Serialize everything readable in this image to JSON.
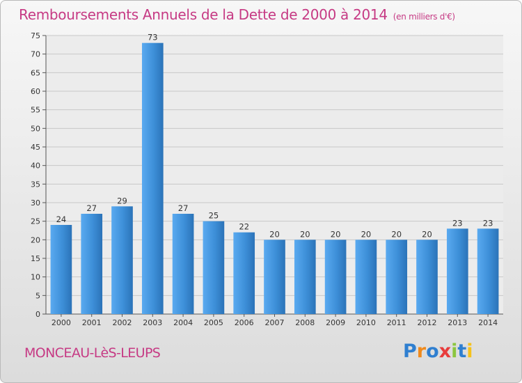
{
  "title": "Remboursements Annuels de la Dette de 2000 à 2014",
  "unit": "(en milliers d'€)",
  "subject": "MONCEAU-LèS-LEUPS",
  "logo": "Proxiti",
  "colors": {
    "bar": "#3d8fd8",
    "bar_light": "#5aaaf0",
    "bar_dark": "#2b73b8",
    "title": "#c63a84"
  },
  "chart_data": {
    "type": "bar",
    "categories": [
      "2000",
      "2001",
      "2002",
      "2003",
      "2004",
      "2005",
      "2006",
      "2007",
      "2008",
      "2009",
      "2010",
      "2011",
      "2012",
      "2013",
      "2014"
    ],
    "values": [
      24,
      27,
      29,
      73,
      27,
      25,
      22,
      20,
      20,
      20,
      20,
      20,
      20,
      23,
      23
    ],
    "ylim": [
      0,
      75
    ],
    "yticks": [
      0,
      5,
      10,
      15,
      20,
      25,
      30,
      35,
      40,
      45,
      50,
      55,
      60,
      65,
      70,
      75
    ],
    "grid": true,
    "legend": "none"
  }
}
